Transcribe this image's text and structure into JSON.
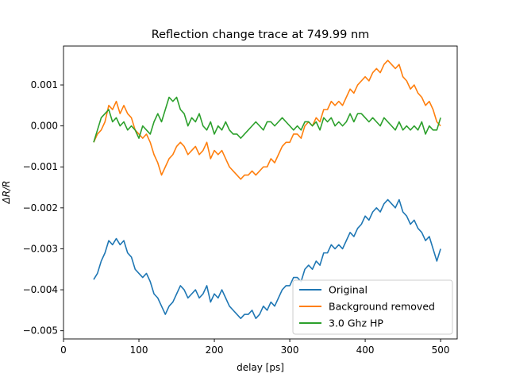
{
  "chart_data": {
    "type": "line",
    "title": "Reflection change trace at 749.99 nm",
    "xlabel": "delay [ps]",
    "ylabel": "ΔR/R",
    "xlim": [
      0,
      522
    ],
    "ylim": [
      -0.0052,
      0.00195
    ],
    "xticks": [
      0,
      100,
      200,
      300,
      400,
      500
    ],
    "xtick_labels": [
      "0",
      "100",
      "200",
      "300",
      "400",
      "500"
    ],
    "yticks": [
      -0.005,
      -0.004,
      -0.003,
      -0.002,
      -0.001,
      0.0,
      0.001
    ],
    "ytick_labels": [
      "−0.005",
      "−0.004",
      "−0.003",
      "−0.002",
      "−0.001",
      "0.000",
      "0.001"
    ],
    "grid": false,
    "legend_position": "lower-right",
    "x": [
      40,
      45,
      50,
      55,
      60,
      65,
      70,
      75,
      80,
      85,
      90,
      95,
      100,
      105,
      110,
      115,
      120,
      125,
      130,
      135,
      140,
      145,
      150,
      155,
      160,
      165,
      170,
      175,
      180,
      185,
      190,
      195,
      200,
      205,
      210,
      215,
      220,
      225,
      230,
      235,
      240,
      245,
      250,
      255,
      260,
      265,
      270,
      275,
      280,
      285,
      290,
      295,
      300,
      305,
      310,
      315,
      320,
      325,
      330,
      335,
      340,
      345,
      350,
      355,
      360,
      365,
      370,
      375,
      380,
      385,
      390,
      395,
      400,
      405,
      410,
      415,
      420,
      425,
      430,
      435,
      440,
      445,
      450,
      455,
      460,
      465,
      470,
      475,
      480,
      485,
      490,
      495,
      500
    ],
    "series": [
      {
        "name": "Original",
        "color": "#1f77b4",
        "values": [
          -0.00375,
          -0.0036,
          -0.0033,
          -0.0031,
          -0.0028,
          -0.0029,
          -0.00275,
          -0.0029,
          -0.0028,
          -0.0031,
          -0.0032,
          -0.0035,
          -0.0036,
          -0.0037,
          -0.0036,
          -0.0038,
          -0.0041,
          -0.0042,
          -0.0044,
          -0.0046,
          -0.0044,
          -0.0043,
          -0.0041,
          -0.0039,
          -0.004,
          -0.0042,
          -0.0041,
          -0.004,
          -0.0042,
          -0.0041,
          -0.0039,
          -0.0043,
          -0.0041,
          -0.0042,
          -0.004,
          -0.0042,
          -0.0044,
          -0.0045,
          -0.0046,
          -0.0047,
          -0.0046,
          -0.0046,
          -0.0045,
          -0.0047,
          -0.0046,
          -0.0044,
          -0.0045,
          -0.0043,
          -0.0044,
          -0.0042,
          -0.004,
          -0.0039,
          -0.0039,
          -0.0037,
          -0.0037,
          -0.0038,
          -0.0035,
          -0.0034,
          -0.0035,
          -0.0033,
          -0.0034,
          -0.0031,
          -0.0031,
          -0.0029,
          -0.003,
          -0.0029,
          -0.003,
          -0.0028,
          -0.0026,
          -0.0027,
          -0.0025,
          -0.0024,
          -0.0022,
          -0.0023,
          -0.0021,
          -0.002,
          -0.0021,
          -0.0019,
          -0.0018,
          -0.0019,
          -0.002,
          -0.0018,
          -0.0021,
          -0.0022,
          -0.0024,
          -0.0023,
          -0.0025,
          -0.0026,
          -0.0028,
          -0.0027,
          -0.003,
          -0.0033,
          -0.003
        ]
      },
      {
        "name": "Background removed",
        "color": "#ff7f0e",
        "values": [
          -0.0004,
          -0.0002,
          -0.0001,
          0.0001,
          0.0005,
          0.0004,
          0.0006,
          0.0003,
          0.0005,
          0.0003,
          0.0002,
          -0.0001,
          -0.0002,
          -0.0003,
          -0.0002,
          -0.0004,
          -0.0007,
          -0.0009,
          -0.0012,
          -0.001,
          -0.0008,
          -0.0007,
          -0.0005,
          -0.0004,
          -0.0005,
          -0.0007,
          -0.0006,
          -0.0005,
          -0.0007,
          -0.0006,
          -0.0004,
          -0.0008,
          -0.0006,
          -0.0007,
          -0.0006,
          -0.0008,
          -0.001,
          -0.0011,
          -0.0012,
          -0.0013,
          -0.0012,
          -0.0012,
          -0.0011,
          -0.0012,
          -0.0011,
          -0.001,
          -0.001,
          -0.0008,
          -0.0009,
          -0.0007,
          -0.0005,
          -0.0004,
          -0.0004,
          -0.0002,
          -0.0002,
          -0.0003,
          0.0,
          0.0001,
          0.0,
          0.0002,
          0.0001,
          0.0004,
          0.0004,
          0.0006,
          0.0005,
          0.0006,
          0.0005,
          0.0007,
          0.0009,
          0.0008,
          0.001,
          0.0011,
          0.0012,
          0.0011,
          0.0013,
          0.0014,
          0.0013,
          0.0015,
          0.0016,
          0.0015,
          0.0014,
          0.0015,
          0.0012,
          0.0011,
          0.0009,
          0.001,
          0.0008,
          0.0007,
          0.0005,
          0.0006,
          0.0004,
          0.0001,
          0.0
        ]
      },
      {
        "name": "3.0 Ghz HP",
        "color": "#2ca02c",
        "values": [
          -0.0004,
          -0.0001,
          0.0002,
          0.0003,
          0.0004,
          0.0001,
          0.0002,
          0.0,
          0.0001,
          -0.0001,
          0.0,
          -0.0001,
          -0.0003,
          0.0,
          -0.0001,
          -0.0002,
          0.0001,
          0.0003,
          0.0001,
          0.0004,
          0.0007,
          0.0006,
          0.0007,
          0.0004,
          0.0003,
          0.0,
          0.0002,
          0.0001,
          0.0003,
          0.0,
          -0.0001,
          0.0001,
          -0.0002,
          0.0,
          -0.0001,
          0.0001,
          -0.0001,
          -0.0002,
          -0.0002,
          -0.0003,
          -0.0002,
          -0.0001,
          0.0,
          0.0001,
          0.0,
          -0.0001,
          0.0001,
          0.0001,
          0.0,
          0.0001,
          0.0002,
          0.0001,
          0.0,
          -0.0001,
          0.0,
          -0.0001,
          0.0001,
          0.0001,
          0.0,
          0.0001,
          -0.0001,
          0.0002,
          0.0001,
          0.0002,
          0.0,
          0.0001,
          0.0,
          0.0001,
          0.0003,
          0.0001,
          0.0003,
          0.0003,
          0.0002,
          0.0001,
          0.0002,
          0.0001,
          0.0,
          0.0002,
          0.0001,
          0.0,
          -0.0001,
          0.0001,
          -0.0001,
          0.0,
          -0.0001,
          0.0,
          -0.0001,
          0.0001,
          -0.0002,
          0.0,
          -0.0001,
          -0.0001,
          0.0002
        ]
      }
    ]
  }
}
